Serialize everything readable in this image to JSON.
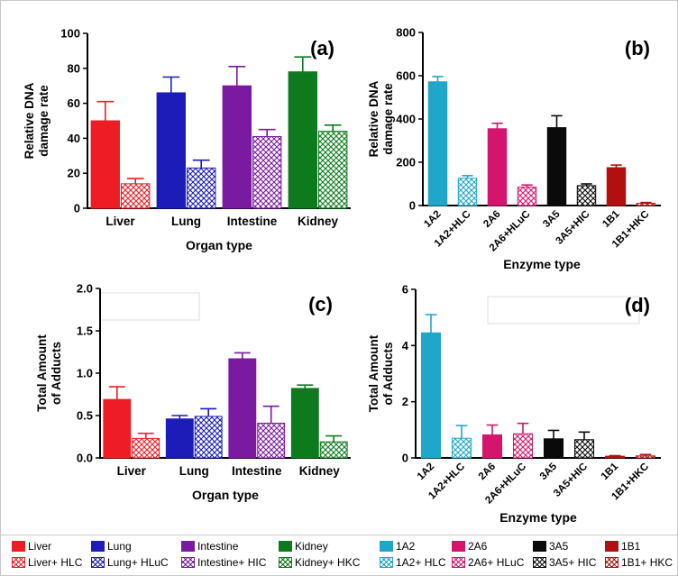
{
  "colors": {
    "liver": "#ee1c24",
    "lung": "#1c1cb8",
    "intestine": "#7a1aa0",
    "kidney": "#0e7a1e",
    "e1A2": "#1fa7c9",
    "e2A6": "#d4156b",
    "e3A5": "#0a0a0a",
    "e1B1": "#b01010"
  },
  "chart_data": [
    {
      "type": "bar",
      "panel": "(a)",
      "xlabel": "Organ type",
      "ylabel": "Relative DNA damage rate",
      "ylim": [
        0,
        100
      ],
      "yticks": [
        "0",
        "20",
        "40",
        "60",
        "80",
        "100"
      ],
      "tick_angle": 0,
      "placeholder_box": false,
      "categories": [
        "Liver",
        "Lung",
        "Intestine",
        "Kidney"
      ],
      "bars": [
        {
          "group": 0,
          "value": 50,
          "error": 11,
          "color": "liver",
          "hatch": false
        },
        {
          "group": 0,
          "value": 14,
          "error": 3,
          "color": "liver",
          "hatch": true
        },
        {
          "group": 1,
          "value": 66,
          "error": 9,
          "color": "lung",
          "hatch": false
        },
        {
          "group": 1,
          "value": 23,
          "error": 4.5,
          "color": "lung",
          "hatch": true
        },
        {
          "group": 2,
          "value": 70,
          "error": 11,
          "color": "intestine",
          "hatch": false
        },
        {
          "group": 2,
          "value": 41,
          "error": 4,
          "color": "intestine",
          "hatch": true
        },
        {
          "group": 3,
          "value": 78,
          "error": 8.5,
          "color": "kidney",
          "hatch": false
        },
        {
          "group": 3,
          "value": 44,
          "error": 3.5,
          "color": "kidney",
          "hatch": true
        }
      ]
    },
    {
      "type": "bar",
      "panel": "(b)",
      "xlabel": "Enzyme type",
      "ylabel": "Relative DNA damage rate",
      "ylim": [
        0,
        800
      ],
      "yticks": [
        "0",
        "200",
        "400",
        "600",
        "800"
      ],
      "tick_angle": -45,
      "placeholder_box": false,
      "categories": [
        "1A2",
        "1A2+HLC",
        "2A6",
        "2A6+HLuC",
        "3A5",
        "3A5+HIC",
        "1B1",
        "1B1+HKC"
      ],
      "bars": [
        {
          "group": 0,
          "value": 572,
          "error": 24,
          "color": "e1A2",
          "hatch": false
        },
        {
          "group": 1,
          "value": 126,
          "error": 12,
          "color": "e1A2",
          "hatch": true
        },
        {
          "group": 2,
          "value": 355,
          "error": 25,
          "color": "e2A6",
          "hatch": false
        },
        {
          "group": 3,
          "value": 85,
          "error": 10,
          "color": "e2A6",
          "hatch": true
        },
        {
          "group": 4,
          "value": 360,
          "error": 55,
          "color": "e3A5",
          "hatch": false
        },
        {
          "group": 5,
          "value": 92,
          "error": 8,
          "color": "e3A5",
          "hatch": true
        },
        {
          "group": 6,
          "value": 175,
          "error": 12,
          "color": "e1B1",
          "hatch": false
        },
        {
          "group": 7,
          "value": 10,
          "error": 4,
          "color": "e1B1",
          "hatch": true
        }
      ]
    },
    {
      "type": "bar",
      "panel": "(c)",
      "xlabel": "Organ type",
      "ylabel": "Total Amount of Adducts",
      "ylim": [
        0,
        2
      ],
      "yticks": [
        "0.0",
        "0.5",
        "1.0",
        "1.5",
        "2.0"
      ],
      "tick_angle": 0,
      "placeholder_box": true,
      "categories": [
        "Liver",
        "Lung",
        "Intestine",
        "Kidney"
      ],
      "bars": [
        {
          "group": 0,
          "value": 0.69,
          "error": 0.15,
          "color": "liver",
          "hatch": false
        },
        {
          "group": 0,
          "value": 0.23,
          "error": 0.06,
          "color": "liver",
          "hatch": true
        },
        {
          "group": 1,
          "value": 0.46,
          "error": 0.04,
          "color": "lung",
          "hatch": false
        },
        {
          "group": 1,
          "value": 0.49,
          "error": 0.09,
          "color": "lung",
          "hatch": true
        },
        {
          "group": 2,
          "value": 1.17,
          "error": 0.07,
          "color": "intestine",
          "hatch": false
        },
        {
          "group": 2,
          "value": 0.41,
          "error": 0.2,
          "color": "intestine",
          "hatch": true
        },
        {
          "group": 3,
          "value": 0.82,
          "error": 0.04,
          "color": "kidney",
          "hatch": false
        },
        {
          "group": 3,
          "value": 0.19,
          "error": 0.07,
          "color": "kidney",
          "hatch": true
        }
      ]
    },
    {
      "type": "bar",
      "panel": "(d)",
      "xlabel": "Enzyme type",
      "ylabel": "Total Amount of Adducts",
      "ylim": [
        0,
        6
      ],
      "yticks": [
        "0",
        "2",
        "4",
        "6"
      ],
      "tick_angle": -45,
      "placeholder_box": true,
      "categories": [
        "1A2",
        "1A2+HLC",
        "2A6",
        "2A6+HLuC",
        "3A5",
        "3A5+HIC",
        "1B1",
        "1B1+HKC"
      ],
      "bars": [
        {
          "group": 0,
          "value": 4.45,
          "error": 0.65,
          "color": "e1A2",
          "hatch": false
        },
        {
          "group": 1,
          "value": 0.7,
          "error": 0.45,
          "color": "e1A2",
          "hatch": true
        },
        {
          "group": 2,
          "value": 0.82,
          "error": 0.35,
          "color": "e2A6",
          "hatch": false
        },
        {
          "group": 3,
          "value": 0.86,
          "error": 0.37,
          "color": "e2A6",
          "hatch": true
        },
        {
          "group": 4,
          "value": 0.68,
          "error": 0.3,
          "color": "e3A5",
          "hatch": false
        },
        {
          "group": 5,
          "value": 0.65,
          "error": 0.27,
          "color": "e3A5",
          "hatch": true
        },
        {
          "group": 6,
          "value": 0.06,
          "error": 0.02,
          "color": "e1B1",
          "hatch": false
        },
        {
          "group": 7,
          "value": 0.07,
          "error": 0.05,
          "color": "e1B1",
          "hatch": true
        }
      ]
    }
  ],
  "legend": [
    {
      "label": "Liver",
      "color": "liver",
      "hatch": false
    },
    {
      "label": "Liver+ HLC",
      "color": "liver",
      "hatch": true
    },
    {
      "label": "Lung",
      "color": "lung",
      "hatch": false
    },
    {
      "label": "Lung+ HLuC",
      "color": "lung",
      "hatch": true
    },
    {
      "label": "Intestine",
      "color": "intestine",
      "hatch": false
    },
    {
      "label": "Intestine+ HIC",
      "color": "intestine",
      "hatch": true
    },
    {
      "label": "Kidney",
      "color": "kidney",
      "hatch": false
    },
    {
      "label": "Kidney+ HKC",
      "color": "kidney",
      "hatch": true
    },
    {
      "label": "1A2",
      "color": "e1A2",
      "hatch": false
    },
    {
      "label": "1A2+ HLC",
      "color": "e1A2",
      "hatch": true
    },
    {
      "label": "2A6",
      "color": "e2A6",
      "hatch": false
    },
    {
      "label": "2A6+ HLuC",
      "color": "e2A6",
      "hatch": true
    },
    {
      "label": "3A5",
      "color": "e3A5",
      "hatch": false
    },
    {
      "label": "3A5+ HIC",
      "color": "e3A5",
      "hatch": true
    },
    {
      "label": "1B1",
      "color": "e1B1",
      "hatch": false
    },
    {
      "label": "1B1+ HKC",
      "color": "e1B1",
      "hatch": true
    }
  ]
}
